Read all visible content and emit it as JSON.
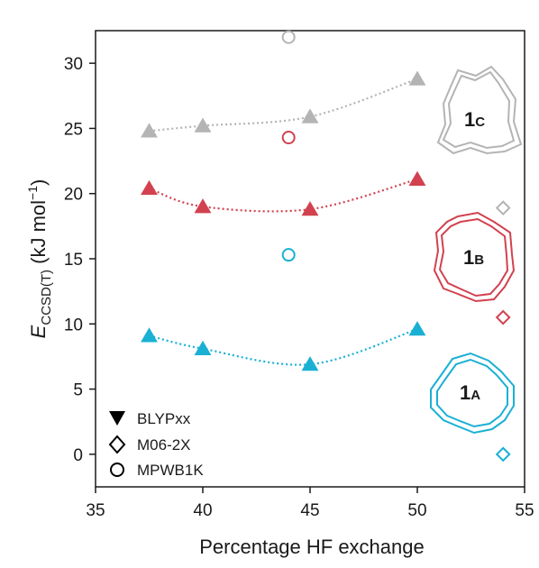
{
  "chart_data": {
    "type": "scatter",
    "xlabel": "Percentage HF exchange",
    "ylabel": {
      "main": "E",
      "subscript": "CCSD(T)",
      "unit_open": " (kJ mol",
      "unit_sup": "−1",
      "unit_close": ")"
    },
    "xlim": [
      35,
      55
    ],
    "ylim": [
      -2.5,
      32.5
    ],
    "xticks": [
      "35",
      "40",
      "45",
      "50",
      "55"
    ],
    "yticks": [
      "0",
      "5",
      "10",
      "15",
      "20",
      "25",
      "30"
    ],
    "grid": false,
    "legend": {
      "placement": "bottom-left",
      "entries": [
        {
          "name": "BLYPxx",
          "marker": "filled-triangle"
        },
        {
          "name": "M06-2X",
          "marker": "open-diamond"
        },
        {
          "name": "MPWB1K",
          "marker": "open-circle"
        }
      ]
    },
    "series": [
      {
        "molecule": "1C",
        "color": "#b4b4b4",
        "blyp": [
          [
            37.5,
            24.8
          ],
          [
            40,
            25.2
          ],
          [
            45,
            25.9
          ],
          [
            50,
            28.8
          ]
        ],
        "m062x": [
          54,
          18.9
        ],
        "mpwb1k": [
          44,
          32.0
        ],
        "mpwb1k_second": [
          44,
          24.3
        ]
      },
      {
        "molecule": "1B",
        "color": "#d2414f",
        "blyp": [
          [
            37.5,
            20.4
          ],
          [
            40,
            19.0
          ],
          [
            45,
            18.8
          ],
          [
            50,
            21.1
          ]
        ],
        "m062x": [
          54,
          10.5
        ],
        "mpwb1k": [
          44,
          24.3
        ]
      },
      {
        "molecule": "1A",
        "color": "#1ab0d4",
        "blyp": [
          [
            37.5,
            9.1
          ],
          [
            40,
            8.1
          ],
          [
            45,
            6.9
          ],
          [
            50,
            9.6
          ]
        ],
        "m062x": [
          54,
          0.0
        ],
        "mpwb1k": [
          44,
          15.3
        ]
      }
    ],
    "molecule_labels": [
      {
        "main": "1",
        "sub": "C",
        "color": "#9a9a9a"
      },
      {
        "main": "1",
        "sub": "B",
        "color": "#d2414f"
      },
      {
        "main": "1",
        "sub": "A",
        "color": "#1ab0d4"
      }
    ]
  }
}
